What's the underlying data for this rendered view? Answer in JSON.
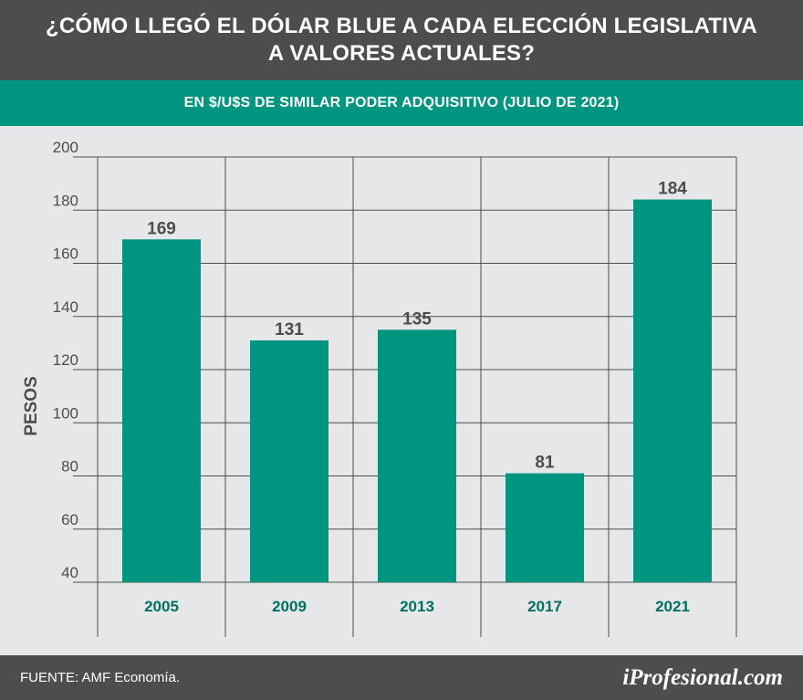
{
  "header": {
    "title_line1": "¿CÓMO LLEGÓ EL DÓLAR BLUE A CADA ELECCIÓN LEGISLATIVA",
    "title_line2": "A VALORES ACTUALES?",
    "subtitle": "EN $/U$S DE SIMILAR PODER ADQUISITIVO (JULIO DE 2021)"
  },
  "footer": {
    "source": "FUENTE: AMF Economía.",
    "logo": "iProfesional.com"
  },
  "colors": {
    "bar": "#009580",
    "header_bg": "#4d4d4d",
    "subheader_bg": "#009580",
    "plot_bg": "#e6e7e8",
    "label_dark": "#4d4d4d",
    "category_text": "#00705f"
  },
  "chart_data": {
    "type": "bar",
    "title": "¿CÓMO LLEGÓ EL DÓLAR BLUE A CADA ELECCIÓN LEGISLATIVA A VALORES ACTUALES?",
    "subtitle": "EN $/U$S DE SIMILAR PODER ADQUISITIVO (JULIO DE 2021)",
    "categories": [
      "2005",
      "2009",
      "2013",
      "2017",
      "2021"
    ],
    "values": [
      169,
      131,
      135,
      81,
      184
    ],
    "data_labels": [
      "169",
      "131",
      "135",
      "81",
      "184"
    ],
    "xlabel": "",
    "ylabel": "PESOS",
    "ylim": [
      40,
      200
    ],
    "yticks": [
      40,
      60,
      80,
      100,
      120,
      140,
      160,
      180,
      200
    ],
    "grid": true,
    "legend": "none"
  }
}
